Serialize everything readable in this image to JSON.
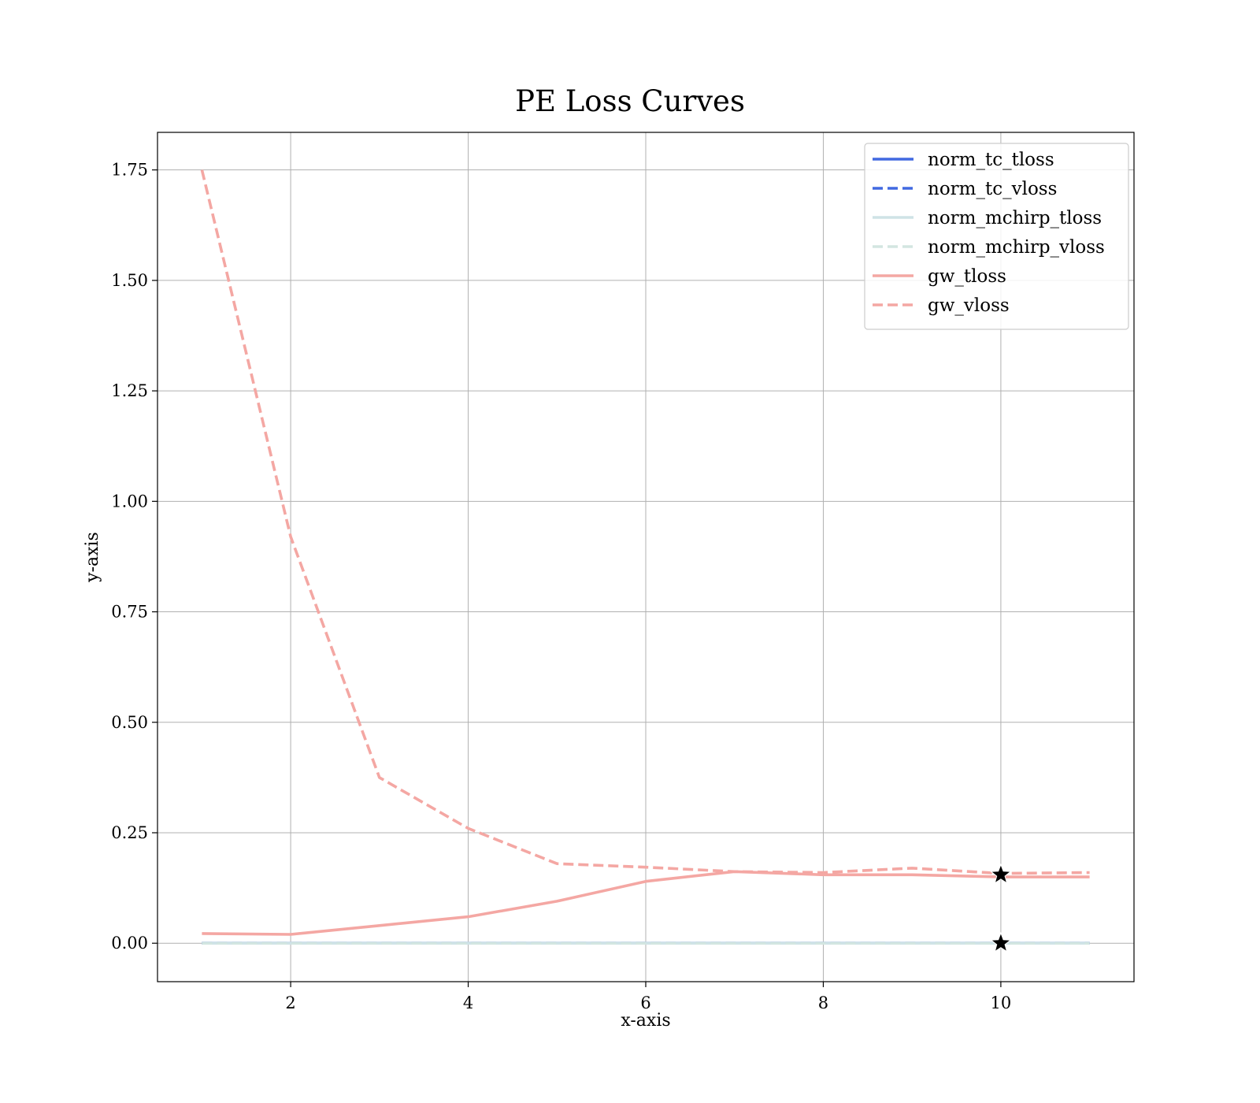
{
  "chart_data": {
    "type": "line",
    "title": "PE Loss Curves",
    "xlabel": "x-axis",
    "ylabel": "y-axis",
    "xlim": [
      0.5,
      11.5
    ],
    "ylim": [
      -0.087,
      1.835
    ],
    "xticks": [
      2,
      4,
      6,
      8,
      10
    ],
    "yticks": [
      0.0,
      0.25,
      0.5,
      0.75,
      1.0,
      1.25,
      1.5,
      1.75
    ],
    "grid": true,
    "legend_position": "top-right",
    "x": [
      1,
      2,
      3,
      4,
      5,
      6,
      7,
      8,
      9,
      10,
      11
    ],
    "series": [
      {
        "name": "norm_tc_tloss",
        "color": "#4169e1",
        "style": "solid",
        "values": [
          0,
          0,
          0,
          0,
          0,
          0,
          0,
          0,
          0,
          0,
          0
        ]
      },
      {
        "name": "norm_tc_vloss",
        "color": "#4169e1",
        "style": "dashed",
        "values": [
          0,
          0,
          0,
          0,
          0,
          0,
          0,
          0,
          0,
          0,
          0
        ]
      },
      {
        "name": "norm_mchirp_tloss",
        "color": "#cfe3e6",
        "style": "solid",
        "values": [
          0,
          0,
          0,
          0,
          0,
          0,
          0,
          0,
          0,
          0,
          0
        ]
      },
      {
        "name": "norm_mchirp_vloss",
        "color": "#d3e6e1",
        "style": "dashed",
        "values": [
          0,
          0,
          0,
          0,
          0,
          0,
          0,
          0,
          0,
          0,
          0
        ]
      },
      {
        "name": "gw_tloss",
        "color": "#f4a7a3",
        "style": "solid",
        "values": [
          0.022,
          0.02,
          0.04,
          0.06,
          0.095,
          0.14,
          0.162,
          0.155,
          0.155,
          0.15,
          0.15
        ]
      },
      {
        "name": "gw_vloss",
        "color": "#f4a7a3",
        "style": "dashed",
        "values": [
          1.75,
          0.92,
          0.375,
          0.26,
          0.18,
          0.172,
          0.162,
          0.16,
          0.17,
          0.158,
          0.16
        ]
      }
    ],
    "markers": [
      {
        "x": 10,
        "y": 0.155,
        "symbol": "star"
      },
      {
        "x": 10,
        "y": 0.0,
        "symbol": "star"
      }
    ]
  }
}
